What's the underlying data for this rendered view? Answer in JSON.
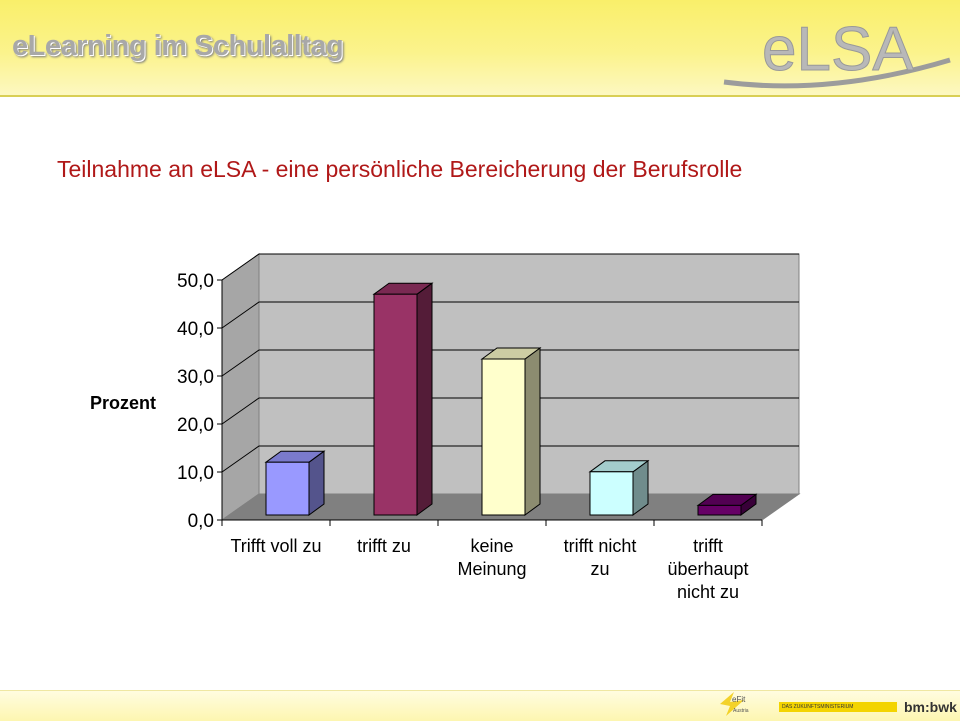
{
  "header": {
    "title": "eLearning im Schulalltag",
    "logo_text": "eLSA"
  },
  "slide": {
    "title": "Teilnahme an eLSA - eine persönliche Bereicherung der Berufsrolle"
  },
  "footer": {
    "efit_logo": "eFit",
    "efit_sub": "Austria",
    "ministry_bar": "DAS ZUKUNFTSMINISTERIUM",
    "ministry_logo": "bm:bwk"
  },
  "colors": {
    "title_red": "#b01818",
    "header_yellow": "#f9ef6a"
  },
  "chart_data": {
    "type": "bar",
    "style": "3d-column",
    "categories": [
      [
        "Trifft voll zu"
      ],
      [
        "trifft zu"
      ],
      [
        "keine",
        "Meinung"
      ],
      [
        "trifft nicht",
        "zu"
      ],
      [
        "trifft",
        "überhaupt",
        "nicht zu"
      ]
    ],
    "values": [
      11.0,
      46.0,
      32.5,
      9.0,
      2.0
    ],
    "bar_colors": [
      "#9999ff",
      "#993366",
      "#ffffcc",
      "#ccffff",
      "#660066"
    ],
    "ylabel": "Prozent",
    "yticks": [
      "0,0",
      "10,0",
      "20,0",
      "30,0",
      "40,0",
      "50,0"
    ],
    "ylim": [
      0,
      50
    ],
    "grid": true
  }
}
